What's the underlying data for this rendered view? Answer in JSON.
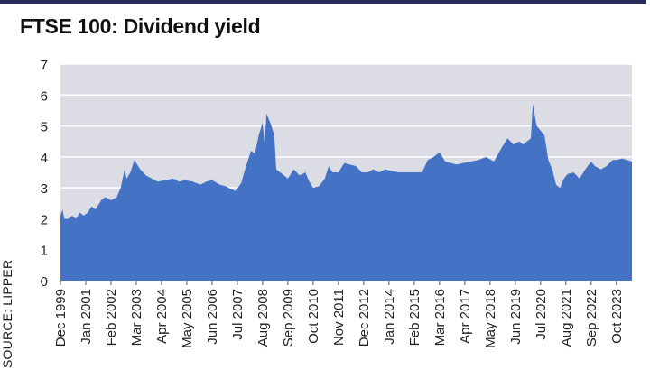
{
  "chart_data": {
    "type": "area",
    "title": "FTSE 100:  Dividend yield",
    "source": "SOURCE: LIPPER",
    "xlabel": "",
    "ylabel": "",
    "ylim": [
      0,
      7
    ],
    "xlim": [
      "1999-12",
      "2024-06"
    ],
    "yticks": [
      0,
      1,
      2,
      3,
      4,
      5,
      6,
      7
    ],
    "xticks": [
      "Dec 1999",
      "Jan 2001",
      "Feb 2002",
      "Mar 2003",
      "Apr 2004",
      "May 2005",
      "Jun 2006",
      "Jul 2007",
      "Aug 2008",
      "Sep 2009",
      "Oct 2010",
      "Nov 2011",
      "Dec 2012",
      "Jan 2014",
      "Feb 2015",
      "Mar 2016",
      "Apr 2017",
      "May 2018",
      "Jun 2019",
      "Jul 2020",
      "Aug 2021",
      "Sep 2022",
      "Oct 2023"
    ],
    "grid": true,
    "legend": "none",
    "colors": {
      "area": "#4472c4",
      "plot_bg": "#dcdde4",
      "grid": "#ffffff",
      "top_rule": "#2b2a5c"
    },
    "points": [
      [
        "1999-12",
        2.1
      ],
      [
        "2000-01",
        2.3
      ],
      [
        "2000-02",
        2.0
      ],
      [
        "2000-04",
        2.0
      ],
      [
        "2000-06",
        2.1
      ],
      [
        "2000-08",
        2.0
      ],
      [
        "2000-10",
        2.2
      ],
      [
        "2000-12",
        2.1
      ],
      [
        "2001-02",
        2.2
      ],
      [
        "2001-04",
        2.4
      ],
      [
        "2001-06",
        2.3
      ],
      [
        "2001-09",
        2.6
      ],
      [
        "2001-11",
        2.7
      ],
      [
        "2002-02",
        2.6
      ],
      [
        "2002-05",
        2.7
      ],
      [
        "2002-07",
        3.0
      ],
      [
        "2002-09",
        3.6
      ],
      [
        "2002-10",
        3.3
      ],
      [
        "2002-12",
        3.5
      ],
      [
        "2003-02",
        3.9
      ],
      [
        "2003-03",
        3.8
      ],
      [
        "2003-05",
        3.6
      ],
      [
        "2003-08",
        3.4
      ],
      [
        "2003-11",
        3.3
      ],
      [
        "2004-02",
        3.2
      ],
      [
        "2004-06",
        3.25
      ],
      [
        "2004-10",
        3.3
      ],
      [
        "2005-01",
        3.2
      ],
      [
        "2005-04",
        3.25
      ],
      [
        "2005-08",
        3.2
      ],
      [
        "2005-12",
        3.1
      ],
      [
        "2006-03",
        3.2
      ],
      [
        "2006-06",
        3.25
      ],
      [
        "2006-10",
        3.1
      ],
      [
        "2007-01",
        3.05
      ],
      [
        "2007-04",
        2.95
      ],
      [
        "2007-06",
        2.9
      ],
      [
        "2007-09",
        3.15
      ],
      [
        "2007-11",
        3.6
      ],
      [
        "2008-02",
        4.2
      ],
      [
        "2008-04",
        4.1
      ],
      [
        "2008-06",
        4.7
      ],
      [
        "2008-08",
        5.1
      ],
      [
        "2008-09",
        4.4
      ],
      [
        "2008-10",
        5.4
      ],
      [
        "2008-12",
        5.1
      ],
      [
        "2009-02",
        4.7
      ],
      [
        "2009-03",
        3.6
      ],
      [
        "2009-05",
        3.5
      ],
      [
        "2009-07",
        3.4
      ],
      [
        "2009-09",
        3.3
      ],
      [
        "2009-12",
        3.6
      ],
      [
        "2010-03",
        3.4
      ],
      [
        "2010-06",
        3.5
      ],
      [
        "2010-08",
        3.2
      ],
      [
        "2010-10",
        3.0
      ],
      [
        "2011-01",
        3.05
      ],
      [
        "2011-04",
        3.3
      ],
      [
        "2011-06",
        3.7
      ],
      [
        "2011-08",
        3.5
      ],
      [
        "2011-11",
        3.5
      ],
      [
        "2012-02",
        3.8
      ],
      [
        "2012-05",
        3.75
      ],
      [
        "2012-08",
        3.7
      ],
      [
        "2012-11",
        3.5
      ],
      [
        "2013-02",
        3.5
      ],
      [
        "2013-05",
        3.6
      ],
      [
        "2013-08",
        3.5
      ],
      [
        "2013-11",
        3.6
      ],
      [
        "2014-02",
        3.55
      ],
      [
        "2014-06",
        3.5
      ],
      [
        "2014-10",
        3.5
      ],
      [
        "2015-02",
        3.5
      ],
      [
        "2015-06",
        3.5
      ],
      [
        "2015-09",
        3.9
      ],
      [
        "2015-12",
        4.0
      ],
      [
        "2016-03",
        4.15
      ],
      [
        "2016-06",
        3.85
      ],
      [
        "2016-09",
        3.8
      ],
      [
        "2016-12",
        3.75
      ],
      [
        "2017-03",
        3.8
      ],
      [
        "2017-07",
        3.85
      ],
      [
        "2017-11",
        3.9
      ],
      [
        "2018-03",
        4.0
      ],
      [
        "2018-07",
        3.85
      ],
      [
        "2018-11",
        4.3
      ],
      [
        "2019-02",
        4.6
      ],
      [
        "2019-05",
        4.4
      ],
      [
        "2019-08",
        4.5
      ],
      [
        "2019-10",
        4.4
      ],
      [
        "2019-12",
        4.5
      ],
      [
        "2020-02",
        4.6
      ],
      [
        "2020-03",
        5.7
      ],
      [
        "2020-05",
        5.0
      ],
      [
        "2020-07",
        4.85
      ],
      [
        "2020-09",
        4.7
      ],
      [
        "2020-11",
        3.9
      ],
      [
        "2021-01",
        3.6
      ],
      [
        "2021-03",
        3.1
      ],
      [
        "2021-05",
        3.0
      ],
      [
        "2021-07",
        3.3
      ],
      [
        "2021-09",
        3.45
      ],
      [
        "2021-12",
        3.5
      ],
      [
        "2022-03",
        3.3
      ],
      [
        "2022-06",
        3.6
      ],
      [
        "2022-09",
        3.85
      ],
      [
        "2022-11",
        3.7
      ],
      [
        "2023-02",
        3.6
      ],
      [
        "2023-05",
        3.7
      ],
      [
        "2023-08",
        3.9
      ],
      [
        "2023-10",
        3.9
      ],
      [
        "2024-01",
        3.95
      ],
      [
        "2024-06",
        3.85
      ]
    ]
  }
}
